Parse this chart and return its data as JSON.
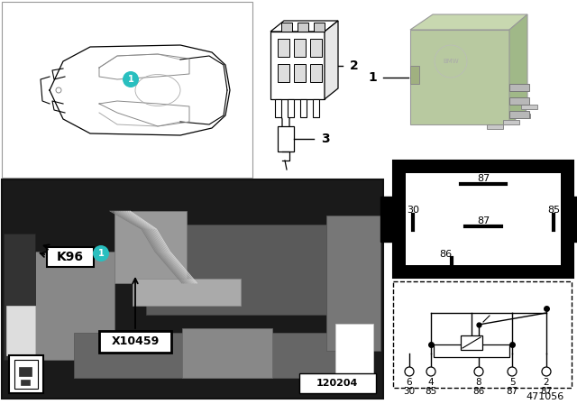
{
  "bg_color": "#ffffff",
  "teal_color": "#29BFBF",
  "relay_green": "#b8c9a0",
  "relay_green_top": "#c8d8b0",
  "relay_green_right": "#a0b888",
  "pin_numbers_top": [
    "6",
    "4",
    "8",
    "5",
    "2"
  ],
  "pin_numbers_bot": [
    "30",
    "85",
    "86",
    "87",
    "87"
  ],
  "code_471056": "471056",
  "code_120204": "120204",
  "k96": "K96",
  "x10459": "X10459"
}
